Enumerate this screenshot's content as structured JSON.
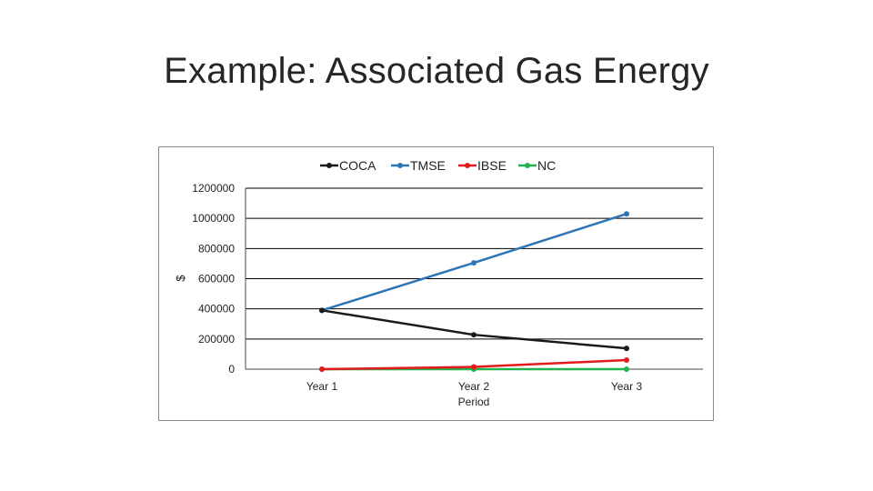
{
  "slide": {
    "title": "Example: Associated Gas Energy"
  },
  "chart_data": {
    "type": "line",
    "title": "",
    "xlabel": "Period",
    "ylabel": "$",
    "categories": [
      "Year 1",
      "Year 2",
      "Year 3"
    ],
    "ylim": [
      0,
      1200000
    ],
    "yticks": [
      "0",
      "200000",
      "400000",
      "600000",
      "800000",
      "1000000",
      "1200000"
    ],
    "grid": true,
    "legend": "top",
    "series": [
      {
        "name": "COCA",
        "color": "#1a1a1a",
        "values": [
          390000,
          228000,
          138000
        ]
      },
      {
        "name": "TMSE",
        "color": "#2e75b6",
        "values": [
          390000,
          705000,
          1030000
        ]
      },
      {
        "name": "IBSE",
        "color": "#e31a1c",
        "values": [
          0,
          15000,
          60000
        ]
      },
      {
        "name": "NC",
        "color": "#22b14c",
        "values": [
          0,
          0,
          0
        ]
      }
    ]
  }
}
